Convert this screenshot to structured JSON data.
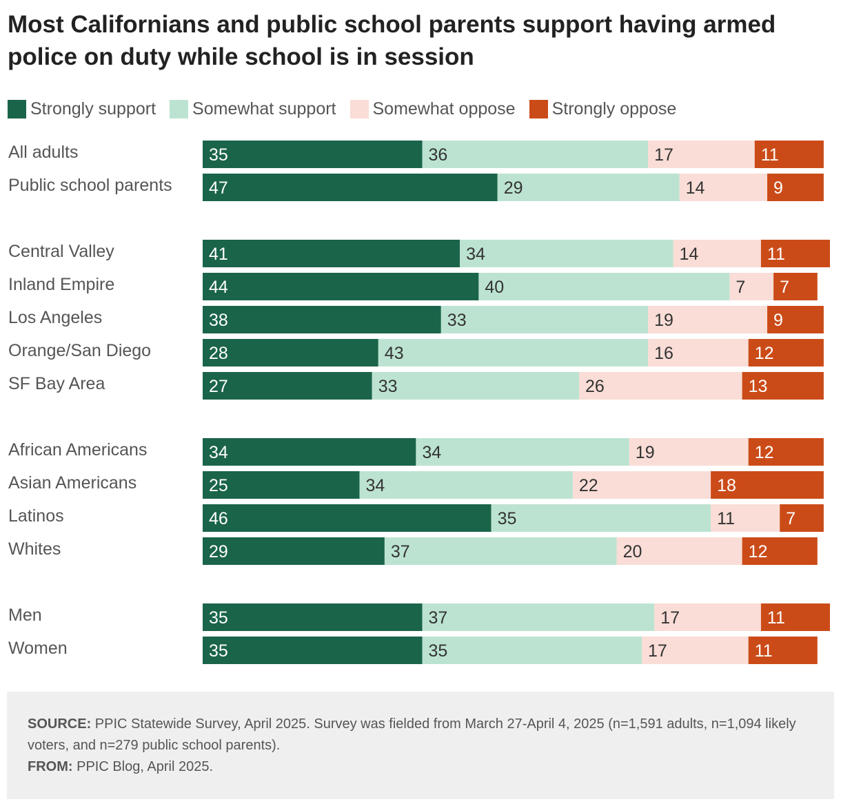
{
  "title": "Most Californians and public school parents support having armed police on duty while school is in session",
  "legend": [
    {
      "label": "Strongly support",
      "color": "#1a644a"
    },
    {
      "label": "Somewhat support",
      "color": "#bce3d1"
    },
    {
      "label": "Somewhat oppose",
      "color": "#f9ddd6"
    },
    {
      "label": "Strongly oppose",
      "color": "#cb4b18"
    }
  ],
  "chart_data": {
    "type": "bar",
    "orientation": "horizontal",
    "stacked": true,
    "xlim": [
      0,
      100
    ],
    "categories": [
      "All adults",
      "Public school parents",
      "Central Valley",
      "Inland Empire",
      "Los Angeles",
      "Orange/San Diego",
      "SF Bay Area",
      "African Americans",
      "Asian Americans",
      "Latinos",
      "Whites",
      "Men",
      "Women"
    ],
    "groups": [
      2,
      5,
      4,
      2
    ],
    "series": [
      {
        "name": "Strongly support",
        "color": "#1a644a",
        "values": [
          35,
          47,
          41,
          44,
          38,
          28,
          27,
          34,
          25,
          46,
          29,
          35,
          35
        ]
      },
      {
        "name": "Somewhat support",
        "color": "#bce3d1",
        "values": [
          36,
          29,
          34,
          40,
          33,
          43,
          33,
          34,
          34,
          35,
          37,
          37,
          35
        ]
      },
      {
        "name": "Somewhat oppose",
        "color": "#f9ddd6",
        "values": [
          17,
          14,
          14,
          7,
          19,
          16,
          26,
          19,
          22,
          11,
          20,
          17,
          17
        ]
      },
      {
        "name": "Strongly oppose",
        "color": "#cb4b18",
        "values": [
          11,
          9,
          11,
          7,
          9,
          12,
          13,
          12,
          18,
          7,
          12,
          11,
          11
        ]
      }
    ]
  },
  "footer": {
    "source_label": "SOURCE:",
    "source_text": "PPIC Statewide Survey, April 2025. Survey was fielded from March 27-April 4, 2025 (n=1,591 adults, n=1,094 likely voters, and n=279 public school parents).",
    "from_label": "FROM:",
    "from_text": "PPIC Blog, April 2025."
  }
}
